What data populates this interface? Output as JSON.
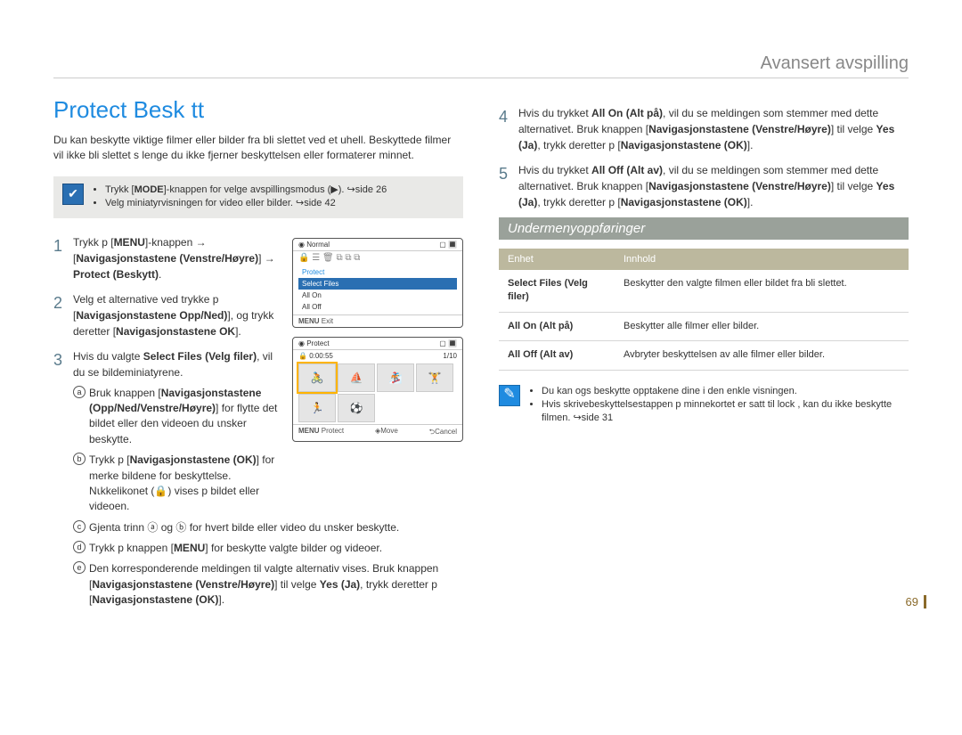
{
  "header": "Avansert avspilling",
  "title": "Protect  Besk  tt",
  "intro": "Du kan beskytte viktige filmer eller bilder fra   bli slettet ved et uhell. Beskyttede filmer vil ikke bli slettet s   lenge du ikke fjerner beskyttelsen eller formaterer minnet.",
  "noteA": {
    "items": [
      "Trykk [<b>MODE</b>]-knappen for   velge avspillingsmodus (▶). ↪side 26",
      "Velg miniatyrvisningen for video eller bilder. ↪side 42"
    ]
  },
  "screen1": {
    "normal": "Normal",
    "protect": "Protect",
    "selectFiles": "Select Files",
    "allOn": "All On",
    "allOff": "All Off",
    "exit": "Exit",
    "menu": "MENU"
  },
  "screen2": {
    "title": "Protect",
    "time": "0:00:55",
    "count": "1/10",
    "menu": "MENU",
    "protect": "Protect",
    "move": "Move",
    "cancel": "Cancel"
  },
  "steps": {
    "s1": "Trykk p  [<b>MENU</b>]-knappen → [<b>Navigasjonstastene (Venstre/Høyre)</b>] → <b>Protect (Beskytt)</b>.",
    "s2": "Velg et alternative ved   trykke p  [<b>Navigasjonstastene Opp/Ned)</b>], og trykk deretter [<b>Navigasjonstastene OK</b>].",
    "s3": "Hvis du valgte <b>Select Files (Velg filer)</b>, vil du se bildeminiatyrene.",
    "sub_a": "Bruk knappen [<b>Navigasjonstastene (Opp/Ned/Venstre/Høyre)</b>] for   flytte det bildet eller den videoen du ⍳nsker   beskytte.",
    "sub_b": "Trykk p  [<b>Navigasjonstastene (OK)</b>] for   merke bildene for beskyttelse. N⍳kkelikonet (🔒) vises p   bildet eller videoen.",
    "sub_c": "Gjenta trinn ⓐ og ⓑ for hvert bilde eller video du ⍳nsker beskytte.",
    "sub_d": "Trykk p   knappen [<b>MENU</b>] for   beskytte valgte bilder og videoer.",
    "sub_e": "Den korresponderende meldingen til valgte alternativ vises. Bruk knappen [<b>Navigasjonstastene (Venstre/Høyre)</b>] til   velge <b>Yes (Ja)</b>, trykk deretter p  [<b>Navigasjonstastene (OK)</b>].",
    "s4": "Hvis du trykket <b>All On (Alt på)</b>, vil du se meldingen som stemmer med dette alternativet. Bruk knappen [<b>Navigasjonstastene (Venstre/Høyre)</b>] til   velge <b>Yes (Ja)</b>, trykk deretter p  [<b>Navigasjonstastene (OK)</b>].",
    "s5": "Hvis du trykket <b>All Off (Alt av)</b>, vil du se meldingen som stemmer med dette alternativet. Bruk knappen [<b>Navigasjonstastene (Venstre/Høyre)</b>] til   velge <b>Yes (Ja)</b>, trykk deretter p  [<b>Navigasjonstastene (OK)</b>]."
  },
  "subhead": "Undermenyoppføringer",
  "table": {
    "h1": "Enhet",
    "h2": "Innhold",
    "rows": [
      {
        "k": "Select Files (Velg filer)",
        "v": "Beskytter den valgte filmen eller bildet fra   bli slettet."
      },
      {
        "k": "All On (Alt på)",
        "v": "Beskytter alle filmer eller bilder."
      },
      {
        "k": "All Off (Alt av)",
        "v": "Avbryter beskyttelsen av alle filmer eller bilder."
      }
    ]
  },
  "noteB": {
    "items": [
      "Du kan ogs   beskytte opptakene dine i den enkle visningen.",
      "Hvis skrivebeskyttelsestappen p   minnekortet er satt til   lock , kan du ikke beskytte filmen. ↪side 31"
    ]
  },
  "pagenum": "69"
}
